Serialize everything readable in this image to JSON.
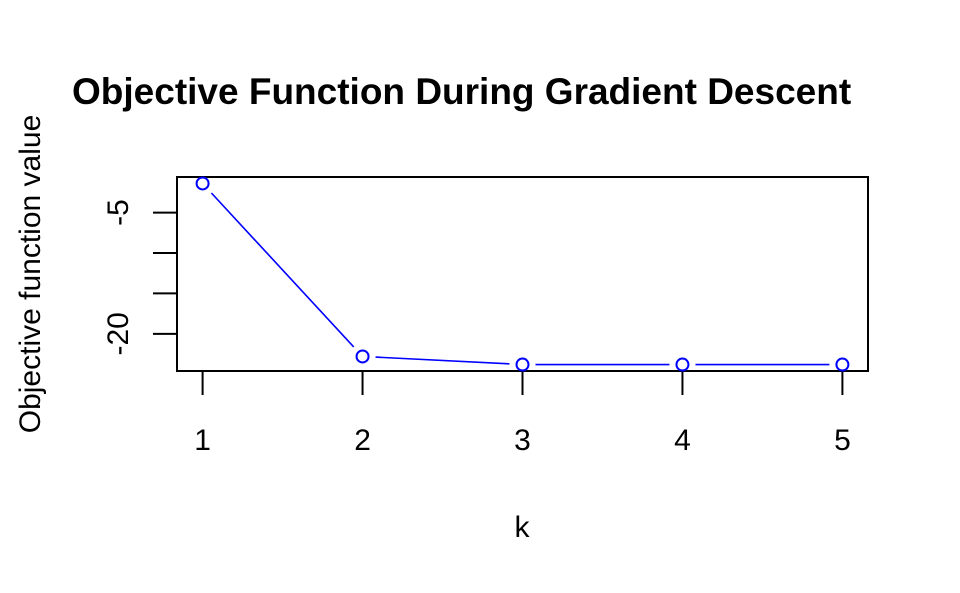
{
  "chart_data": {
    "type": "line",
    "title": "Objective Function During Gradient Descent",
    "xlabel": "k",
    "ylabel": "Objective function value",
    "x": [
      1,
      2,
      3,
      4,
      5
    ],
    "series": [
      {
        "values": [
          -1.4,
          -22.8,
          -23.8,
          -23.8,
          -23.8
        ]
      }
    ],
    "xlim": [
      0.84,
      5.16
    ],
    "ylim": [
      -24.6,
      -0.6
    ],
    "xticks": [
      1,
      2,
      3,
      4,
      5
    ],
    "yticks": [
      -5,
      -10,
      -15,
      -20
    ],
    "ytick_labels": [
      "-5",
      "",
      "",
      "-20"
    ],
    "grid": false,
    "line_type": "both",
    "colors": {
      "series": "#0000ff",
      "axis": "#000000"
    }
  }
}
